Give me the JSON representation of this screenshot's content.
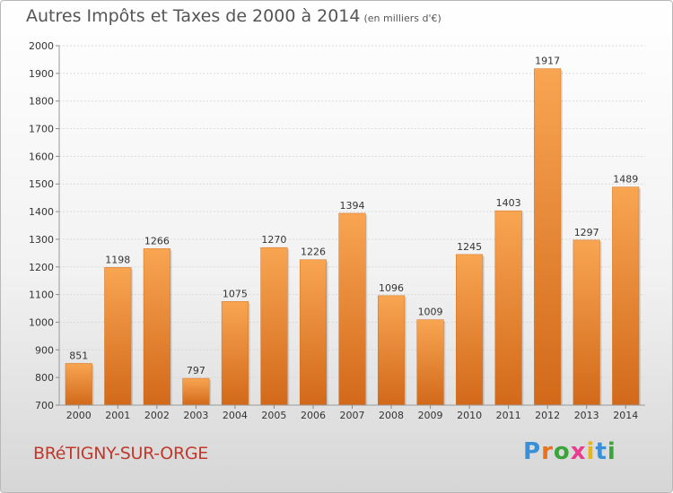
{
  "header": {
    "title": "Autres Impôts et Taxes de 2000 à 2014",
    "unit": "(en milliers d'€)"
  },
  "footer": {
    "town": "BRéTIGNY-SUR-ORGE",
    "brand": [
      "P",
      "r",
      "o",
      "x",
      "i",
      "t",
      "i"
    ],
    "brand_colors": [
      "#3a8fd9",
      "#e8731c",
      "#3aa53a",
      "#e83c8c",
      "#e8b41c",
      "#3a8fd9",
      "#3aa53a"
    ]
  },
  "chart_data": {
    "type": "bar",
    "title": "Autres Impôts et Taxes de 2000 à 2014",
    "categories": [
      "2000",
      "2001",
      "2002",
      "2003",
      "2004",
      "2005",
      "2006",
      "2007",
      "2008",
      "2009",
      "2010",
      "2011",
      "2012",
      "2013",
      "2014"
    ],
    "values": [
      851,
      1198,
      1266,
      797,
      1075,
      1270,
      1226,
      1394,
      1096,
      1009,
      1245,
      1403,
      1917,
      1297,
      1489
    ],
    "ylim": [
      700,
      2000
    ],
    "yticks": [
      700,
      800,
      900,
      1000,
      1100,
      1200,
      1300,
      1400,
      1500,
      1600,
      1700,
      1800,
      1900,
      2000
    ],
    "grid": true,
    "bar_color": "#f08c30"
  }
}
